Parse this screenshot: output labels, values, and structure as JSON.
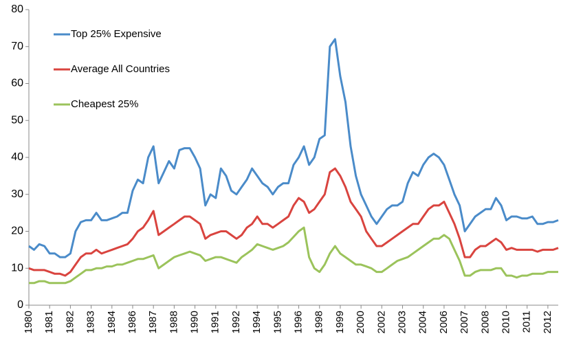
{
  "chart_data": {
    "type": "line",
    "categories": [
      "1980",
      null,
      null,
      null,
      "1981",
      null,
      null,
      null,
      "1982",
      null,
      null,
      null,
      "1983",
      null,
      null,
      null,
      "1984",
      null,
      null,
      null,
      "1986",
      null,
      null,
      null,
      "1987",
      null,
      null,
      null,
      "1988",
      null,
      null,
      null,
      "1990",
      null,
      null,
      null,
      "1991",
      null,
      null,
      null,
      "1992",
      null,
      null,
      null,
      "1994",
      null,
      null,
      null,
      "1995",
      null,
      null,
      null,
      "1996",
      null,
      null,
      null,
      "1998",
      null,
      null,
      null,
      "1999",
      null,
      null,
      null,
      "2000",
      null,
      null,
      null,
      "2002",
      null,
      null,
      null,
      "2003",
      null,
      null,
      null,
      "2004",
      null,
      null,
      null,
      "2006",
      null,
      null,
      null,
      "2007",
      null,
      null,
      null,
      "2008",
      null,
      null,
      null,
      "2010",
      null,
      null,
      null,
      "2011",
      null,
      null,
      null,
      "2012",
      null,
      null
    ],
    "series": [
      {
        "name": "Top 25% Expensive",
        "color": "#4a8bc9",
        "values": [
          16,
          15,
          16.5,
          16,
          14,
          14,
          13,
          13,
          14,
          20,
          22.5,
          23,
          23,
          25,
          23,
          23,
          23.5,
          24,
          25,
          25,
          31,
          34,
          33,
          40,
          43,
          33,
          36,
          39,
          37,
          42,
          42.5,
          42.5,
          40,
          37,
          27,
          30,
          29,
          37,
          35,
          31,
          30,
          32,
          34,
          37,
          35,
          33,
          32,
          30,
          32,
          33,
          33,
          38,
          40,
          43,
          38,
          40,
          45,
          46,
          70,
          72,
          62,
          55,
          43,
          35,
          30,
          27,
          24,
          22,
          24,
          26,
          27,
          27,
          28,
          33,
          36,
          35,
          38,
          40,
          41,
          40,
          38,
          34,
          30,
          27,
          20,
          22,
          24,
          25,
          26,
          26,
          29,
          27,
          23,
          24,
          24,
          23.5,
          23.5,
          24,
          22,
          22,
          22.5,
          22.5,
          23
        ]
      },
      {
        "name": "Average All Countries",
        "color": "#d9443f",
        "values": [
          10,
          9.5,
          9.5,
          9.5,
          9,
          8.5,
          8.5,
          8,
          9,
          11,
          13,
          14,
          14,
          15,
          14,
          14.5,
          15,
          15.5,
          16,
          16.5,
          18,
          20,
          21,
          23,
          25.5,
          19,
          20,
          21,
          22,
          23,
          24,
          24,
          23,
          22,
          18,
          19,
          19.5,
          20,
          20,
          19,
          18,
          19,
          21,
          22,
          24,
          22,
          22,
          21,
          22,
          23,
          24,
          27,
          29,
          28,
          25,
          26,
          28,
          30,
          36,
          37,
          35,
          32,
          28,
          26,
          24,
          20,
          18,
          16,
          16,
          17,
          18,
          19,
          20,
          21,
          22,
          22,
          24,
          26,
          27,
          27,
          28,
          25,
          22,
          18,
          13,
          13,
          15,
          16,
          16,
          17,
          18,
          17,
          15,
          15.5,
          15,
          15,
          15,
          15,
          14.5,
          15,
          15,
          15,
          15.5
        ]
      },
      {
        "name": "Cheapest 25%",
        "color": "#9bc35b",
        "values": [
          6,
          6,
          6.5,
          6.5,
          6,
          6,
          6,
          6,
          6.5,
          7.5,
          8.5,
          9.5,
          9.5,
          10,
          10,
          10.5,
          10.5,
          11,
          11,
          11.5,
          12,
          12.5,
          12.5,
          13,
          13.5,
          10,
          11,
          12,
          13,
          13.5,
          14,
          14.5,
          14,
          13.5,
          12,
          12.5,
          13,
          13,
          12.5,
          12,
          11.5,
          13,
          14,
          15,
          16.5,
          16,
          15.5,
          15,
          15.5,
          16,
          17,
          18.5,
          20,
          21,
          13,
          10,
          9,
          11,
          14,
          16,
          14,
          13,
          12,
          11,
          11,
          10.5,
          10,
          9,
          9,
          10,
          11,
          12,
          12.5,
          13,
          14,
          15,
          16,
          17,
          18,
          18,
          19,
          18,
          15,
          12,
          8,
          8,
          9,
          9.5,
          9.5,
          9.5,
          10,
          10,
          8,
          8,
          7.5,
          8,
          8,
          8.5,
          8.5,
          8.5,
          9,
          9,
          9
        ]
      }
    ],
    "ylim": [
      0,
      80
    ],
    "yticks": [
      0,
      10,
      20,
      30,
      40,
      50,
      60,
      70,
      80
    ],
    "grid": false,
    "legend": "upper left"
  }
}
